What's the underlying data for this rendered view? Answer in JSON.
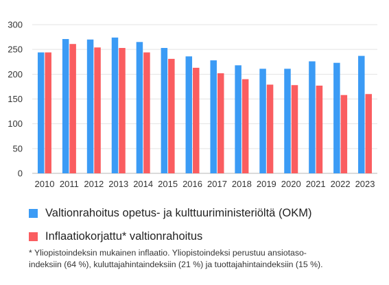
{
  "chart_data": {
    "type": "bar",
    "categories": [
      "2010",
      "2011",
      "2012",
      "2013",
      "2014",
      "2015",
      "2016",
      "2017",
      "2018",
      "2019",
      "2020",
      "2021",
      "2022",
      "2023"
    ],
    "series": [
      {
        "name": "Valtionrahoitus opetus- ja kulttuuriministeriöltä (OKM)",
        "color": "#3b9bf5",
        "values": [
          244,
          271,
          270,
          274,
          265,
          253,
          236,
          228,
          218,
          211,
          211,
          226,
          223,
          237
        ]
      },
      {
        "name": "Inflaatiokorjattu* valtionrahoitus",
        "color": "#fa5d60",
        "values": [
          244,
          261,
          254,
          253,
          244,
          231,
          213,
          202,
          190,
          179,
          178,
          177,
          158,
          160
        ]
      }
    ],
    "ylim": [
      0,
      300
    ],
    "yticks": [
      "0",
      "50",
      "100",
      "150",
      "200",
      "250",
      "300"
    ],
    "grid": true,
    "legend_position": "bottom"
  },
  "footnote": {
    "line1": "* Yliopistoindeksin mukainen inflaatio. Yliopistoindeksi perustuu ansiotaso-",
    "line2": "indeksiin (64 %), kuluttajahintaindeksiin (21 %) ja tuottajahintaindeksiin (15 %)."
  }
}
